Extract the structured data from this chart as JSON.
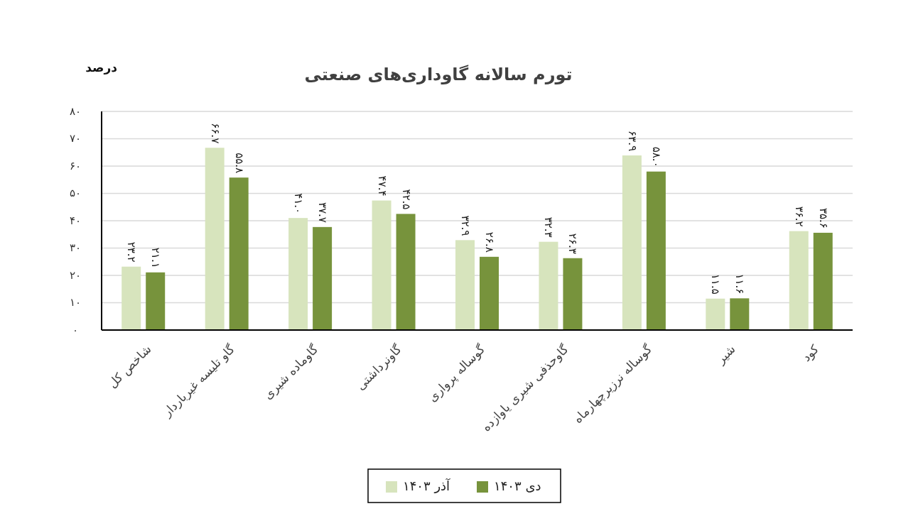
{
  "chart_data": {
    "type": "bar",
    "title": "تورم سالانه گاوداری‌های صنعتی",
    "ylabel": "درصد",
    "categories": [
      "شاخص کل",
      "گاو تلیسه غیرباردار",
      "گاوماده شیری",
      "گاونرداشتی",
      "گوساله پرواری",
      "گاوحذفی شیری یاوازده",
      "گوساله نرزیرچهارماه",
      "شیر",
      "کود"
    ],
    "series": [
      {
        "name": "آذر ۱۴۰۳",
        "color": "#d7e4bd",
        "values": [
          23.2,
          66.7,
          41.0,
          47.4,
          32.9,
          32.3,
          63.9,
          11.5,
          36.2
        ],
        "value_labels": [
          "۲۳.۲",
          "۶۶.۷",
          "۴۱.۰",
          "۴۷.۴",
          "۳۲.۹",
          "۳۲.۳",
          "۶۳.۹",
          "۱۱.۵",
          "۳۶.۲"
        ]
      },
      {
        "name": "دی ۱۴۰۳",
        "color": "#77933c",
        "values": [
          21.1,
          55.8,
          37.7,
          42.5,
          26.8,
          26.3,
          58.0,
          11.6,
          35.6
        ],
        "value_labels": [
          "۲۱.۱",
          "۵۵.۸",
          "۳۷.۷",
          "۴۲.۵",
          "۲۶.۸",
          "۲۶.۳",
          "۵۸.۰",
          "۱۱.۶",
          "۳۵.۶"
        ]
      }
    ],
    "ylim": [
      0,
      80
    ],
    "yticks": [
      {
        "value": 0,
        "label": "۰"
      },
      {
        "value": 10,
        "label": "۱۰"
      },
      {
        "value": 20,
        "label": "۲۰"
      },
      {
        "value": 30,
        "label": "۳۰"
      },
      {
        "value": 40,
        "label": "۴۰"
      },
      {
        "value": 50,
        "label": "۵۰"
      },
      {
        "value": 60,
        "label": "۶۰"
      },
      {
        "value": 70,
        "label": "۷۰"
      },
      {
        "value": 80,
        "label": "۸۰"
      }
    ],
    "grid": "y",
    "legend": "bottom"
  }
}
